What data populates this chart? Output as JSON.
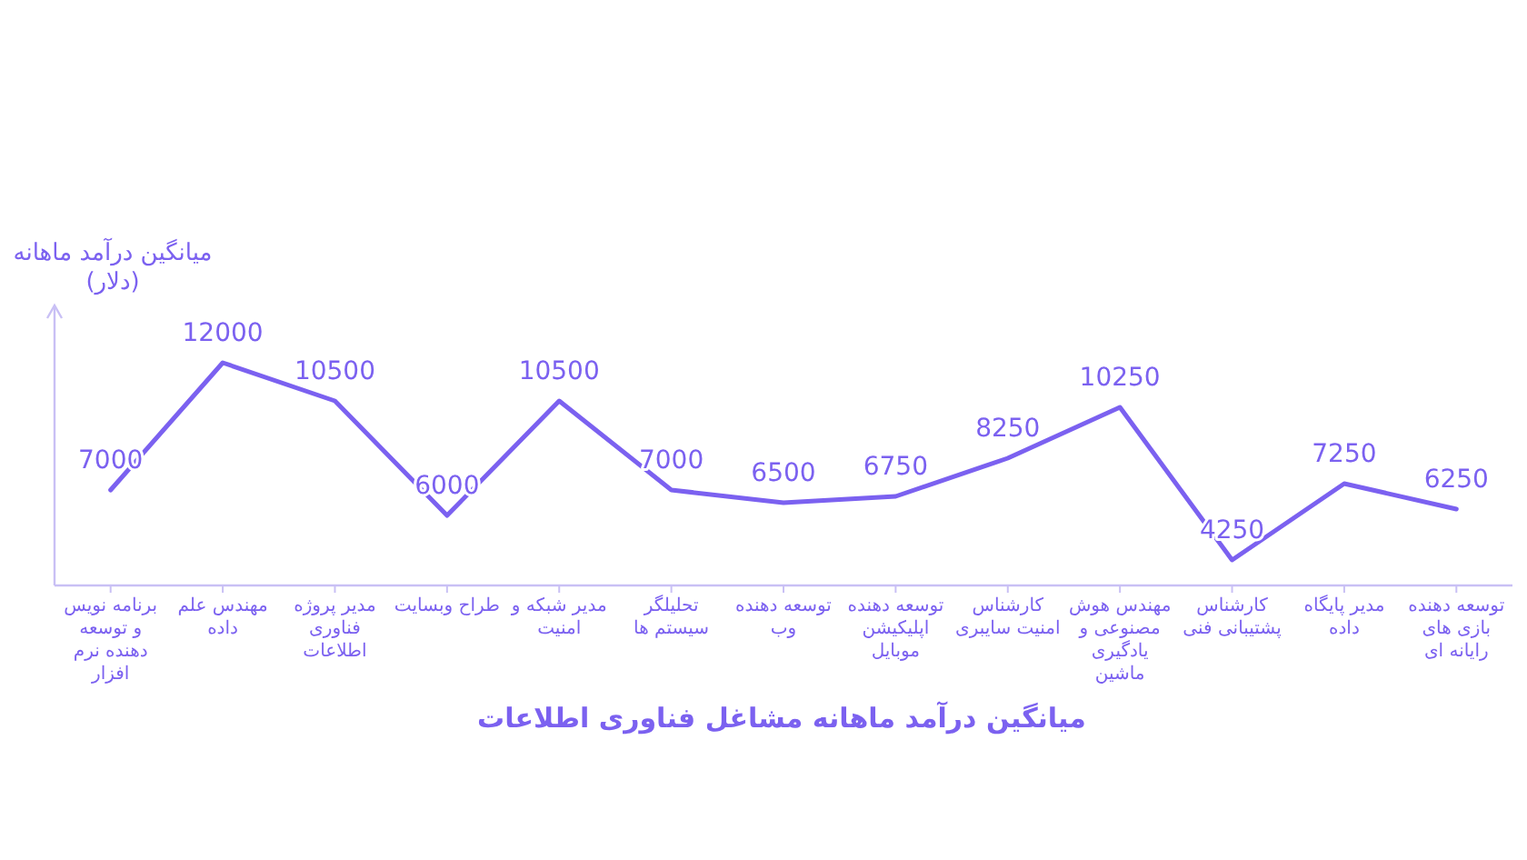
{
  "chart_data": {
    "type": "line",
    "title": "میانگین درآمد ماهانه مشاغل فناوری اطلاعات",
    "ylabel": "میانگین درآمد ماهانه (دلار)",
    "categories": [
      "برنامه نویس و توسعه دهنده نرم افزار",
      "مهندس علم داده",
      "مدیر پروژه فناوری اطلاعات",
      "طراح وبسایت",
      "مدیر شبکه و امنیت",
      "تحلیلگر سیستم ها",
      "توسعه دهنده وب",
      "توسعه دهنده اپلیکیشن موبایل",
      "کارشناس امنیت سایبری",
      "مهندس هوش مصنوعی و یادگیری ماشین",
      "کارشناس پشتیبانی فنی",
      "مدیر پایگاه داده",
      "توسعه دهنده بازی های رایانه ای"
    ],
    "series": [
      {
        "color": "#7b61f0",
        "values": [
          7000,
          12000,
          10500,
          6000,
          10500,
          7000,
          6500,
          6750,
          8250,
          10250,
          4250,
          7250,
          6250
        ]
      }
    ],
    "ylim": [
      3250,
      14250
    ],
    "tick_labels": "x",
    "data_labels": true,
    "marker": "none",
    "line_style": "solid"
  }
}
